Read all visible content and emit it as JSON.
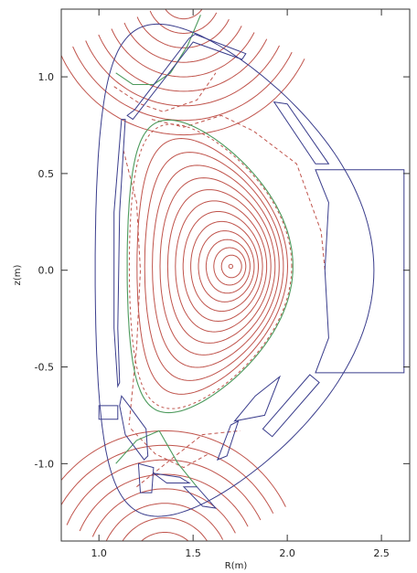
{
  "chart_data": {
    "type": "contour",
    "title": "",
    "xlabel": "R(m)",
    "ylabel": "z(m)",
    "xlim": [
      0.8,
      2.65
    ],
    "ylim": [
      -1.4,
      1.35
    ],
    "xticks": [
      1.0,
      1.5,
      2.0,
      2.5
    ],
    "xtick_labels": [
      "1.0",
      "1.5",
      "2.0",
      "2.5"
    ],
    "yticks": [
      1.0,
      0.5,
      0.0,
      -0.5,
      -1.0
    ],
    "ytick_labels": [
      "1.0",
      "0.5",
      "0.0",
      "-0.5",
      "-1.0"
    ],
    "grid": false,
    "magnetic_axis": {
      "R": 1.72,
      "z": 0.02
    },
    "separatrix_color": "#4c9a5c",
    "flux_contour_color": "#c0544c",
    "wall_color": "#3a3d8c",
    "closed_flux_surfaces": 13,
    "legend": null
  }
}
